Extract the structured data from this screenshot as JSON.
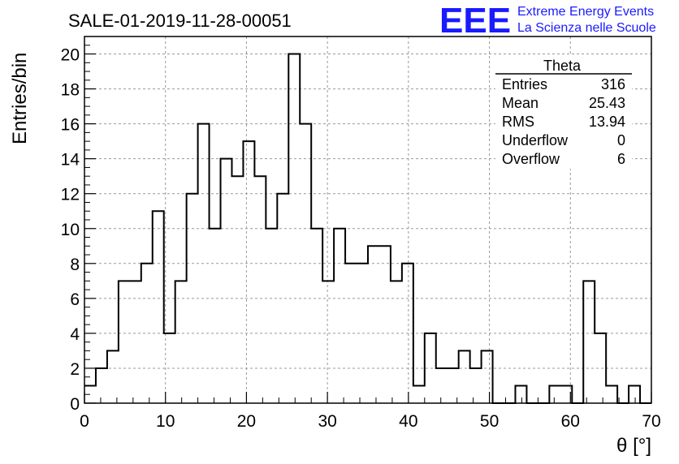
{
  "title": "SALE-01-2019-11-28-00051",
  "logo": {
    "mark": "EEE",
    "line1": "Extreme Energy Events",
    "line2": "La Scienza nelle Scuole",
    "color": "#1a1aff"
  },
  "stats_box": {
    "name": "Theta",
    "rows": [
      {
        "label": "Entries",
        "value": "316"
      },
      {
        "label": "Mean",
        "value": "25.43"
      },
      {
        "label": "RMS",
        "value": "13.94"
      },
      {
        "label": "Underflow",
        "value": "0"
      },
      {
        "label": "Overflow",
        "value": "6"
      }
    ]
  },
  "chart_data": {
    "type": "bar",
    "style": "step-histogram",
    "xlabel": "θ [°]",
    "ylabel": "Entries/bin",
    "xlim": [
      0,
      70
    ],
    "ylim": [
      0,
      21
    ],
    "bin_width": 1.4,
    "grid": true,
    "x_ticks": [
      0,
      10,
      20,
      30,
      40,
      50,
      60,
      70
    ],
    "y_ticks": [
      0,
      2,
      4,
      6,
      8,
      10,
      12,
      14,
      16,
      18,
      20
    ],
    "values": [
      1,
      2,
      3,
      7,
      7,
      8,
      11,
      4,
      7,
      12,
      16,
      10,
      14,
      13,
      15,
      13,
      10,
      12,
      20,
      16,
      10,
      7,
      10,
      8,
      8,
      9,
      9,
      7,
      8,
      1,
      4,
      2,
      2,
      3,
      2,
      3,
      0,
      0,
      1,
      0,
      0,
      1,
      1,
      0,
      7,
      4,
      1,
      0,
      1,
      0
    ]
  }
}
